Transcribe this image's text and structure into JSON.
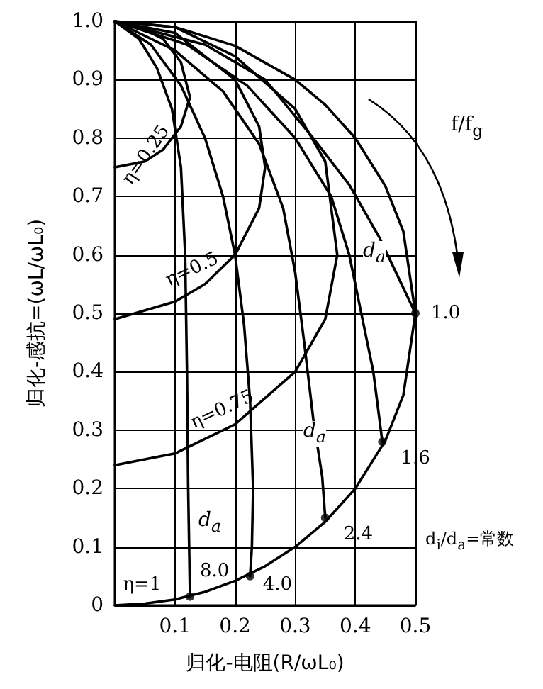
{
  "chart_data": {
    "type": "line",
    "xlabel": "归化-电阻(R/ωL₀)",
    "ylabel": "归化-感抗=(ωL/ωL₀)",
    "xlim": [
      0,
      0.5
    ],
    "xticks": [
      0.1,
      0.2,
      0.3,
      0.4,
      0.5
    ],
    "ylim": [
      0,
      1
    ],
    "yticks": [
      0,
      0.1,
      0.2,
      0.3,
      0.4,
      0.5,
      0.6,
      0.7,
      0.8,
      0.9,
      {
        "value": 1,
        "label": "1.0"
      }
    ],
    "grid": true,
    "legend": false,
    "marker": "none",
    "line_style": "solid",
    "series": [
      {
        "name": "η=1",
        "color": "#000000",
        "x": [
          0,
          0.05,
          0.1,
          0.15,
          0.2,
          0.25,
          0.3,
          0.35,
          0.4,
          0.45,
          0.48,
          0.5,
          0.48,
          0.45,
          0.4,
          0.35,
          0.3,
          0.2,
          0.1,
          0
        ],
        "values": [
          0,
          0.003,
          0.01,
          0.023,
          0.042,
          0.067,
          0.1,
          0.143,
          0.2,
          0.282,
          0.36,
          0.5,
          0.64,
          0.718,
          0.8,
          0.857,
          0.9,
          0.958,
          0.99,
          1
        ]
      },
      {
        "name": "η=0.75",
        "color": "#000000",
        "x": [
          0,
          0.1,
          0.2,
          0.3,
          0.35,
          0.37,
          0.35,
          0.3,
          0.2,
          0.1,
          0
        ],
        "values": [
          0.24,
          0.26,
          0.31,
          0.4,
          0.49,
          0.6,
          0.76,
          0.85,
          0.94,
          0.99,
          1
        ]
      },
      {
        "name": "η=0.5",
        "color": "#000000",
        "x": [
          0,
          0.1,
          0.15,
          0.2,
          0.24,
          0.25,
          0.24,
          0.2,
          0.1,
          0
        ],
        "values": [
          0.49,
          0.52,
          0.55,
          0.6,
          0.68,
          0.75,
          0.82,
          0.9,
          0.98,
          1
        ]
      },
      {
        "name": "η=0.25",
        "color": "#000000",
        "x": [
          0,
          0.05,
          0.08,
          0.11,
          0.125,
          0.11,
          0.08,
          0.04,
          0
        ],
        "values": [
          0.75,
          0.76,
          0.78,
          0.82,
          0.87,
          0.93,
          0.97,
          0.99,
          1
        ]
      },
      {
        "name": "8.0",
        "color": "#000000",
        "x": [
          0,
          0.04,
          0.07,
          0.095,
          0.11,
          0.117,
          0.12,
          0.122,
          0.125
        ],
        "values": [
          1,
          0.97,
          0.92,
          0.85,
          0.75,
          0.6,
          0.4,
          0.2,
          0.015
        ]
      },
      {
        "name": "4.0",
        "color": "#000000",
        "x": [
          0,
          0.06,
          0.11,
          0.15,
          0.18,
          0.2,
          0.215,
          0.225,
          0.23,
          0.228,
          0.225
        ],
        "values": [
          1,
          0.96,
          0.89,
          0.8,
          0.7,
          0.6,
          0.48,
          0.35,
          0.2,
          0.1,
          0.05
        ]
      },
      {
        "name": "2.4",
        "color": "#000000",
        "x": [
          0,
          0.1,
          0.18,
          0.24,
          0.28,
          0.3,
          0.315,
          0.33,
          0.345,
          0.35
        ],
        "values": [
          1,
          0.95,
          0.88,
          0.79,
          0.68,
          0.57,
          0.45,
          0.32,
          0.22,
          0.15
        ]
      },
      {
        "name": "1.6",
        "color": "#000000",
        "x": [
          0,
          0.12,
          0.22,
          0.3,
          0.36,
          0.39,
          0.41,
          0.43,
          0.445
        ],
        "values": [
          1,
          0.96,
          0.89,
          0.8,
          0.7,
          0.6,
          0.5,
          0.4,
          0.28
        ]
      },
      {
        "name": "1.0",
        "color": "#000000",
        "x": [
          0,
          0.15,
          0.25,
          0.33,
          0.39,
          0.44,
          0.5
        ],
        "values": [
          1,
          0.96,
          0.9,
          0.8,
          0.72,
          0.63,
          0.5
        ]
      },
      {
        "type": "scatter",
        "marker": "circle",
        "color": "#000000",
        "x": [
          0.125,
          0.225,
          0.35,
          0.445,
          0.5
        ],
        "values": [
          0.015,
          0.05,
          0.15,
          0.28,
          0.5
        ]
      }
    ],
    "annotations": [
      "d$_{a}$",
      "d$_{a}$",
      "d$_{a}$",
      "f/f$_{g}$",
      "d$_{i}$/d$_{a}$=常数"
    ]
  }
}
